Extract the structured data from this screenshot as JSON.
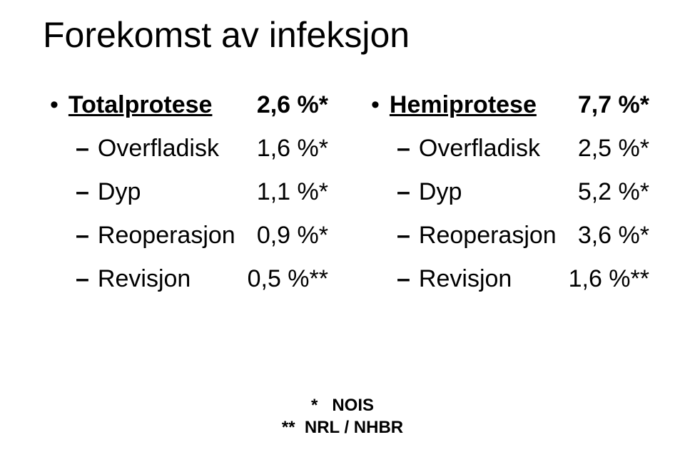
{
  "title": "Forekomst av infeksjon",
  "left": {
    "heading_label": "Totalprotese",
    "heading_value": "2,6 %*",
    "rows": [
      {
        "label": "Overfladisk",
        "value": "1,6 %*"
      },
      {
        "label": "Dyp",
        "value": "1,1 %*"
      },
      {
        "label": "Reoperasjon",
        "value": "0,9 %*"
      },
      {
        "label": "Revisjon",
        "value": "0,5 %**"
      }
    ]
  },
  "right": {
    "heading_label": "Hemiprotese",
    "heading_value": "7,7 %*",
    "rows": [
      {
        "label": "Overfladisk",
        "value": "2,5 %*"
      },
      {
        "label": "Dyp",
        "value": "5,2 %*"
      },
      {
        "label": "Reoperasjon",
        "value": "3,6 %*"
      },
      {
        "label": "Revisjon",
        "value": "1,6 %**"
      }
    ]
  },
  "footnotes": [
    "*   NOIS",
    "**  NRL / NHBR"
  ]
}
